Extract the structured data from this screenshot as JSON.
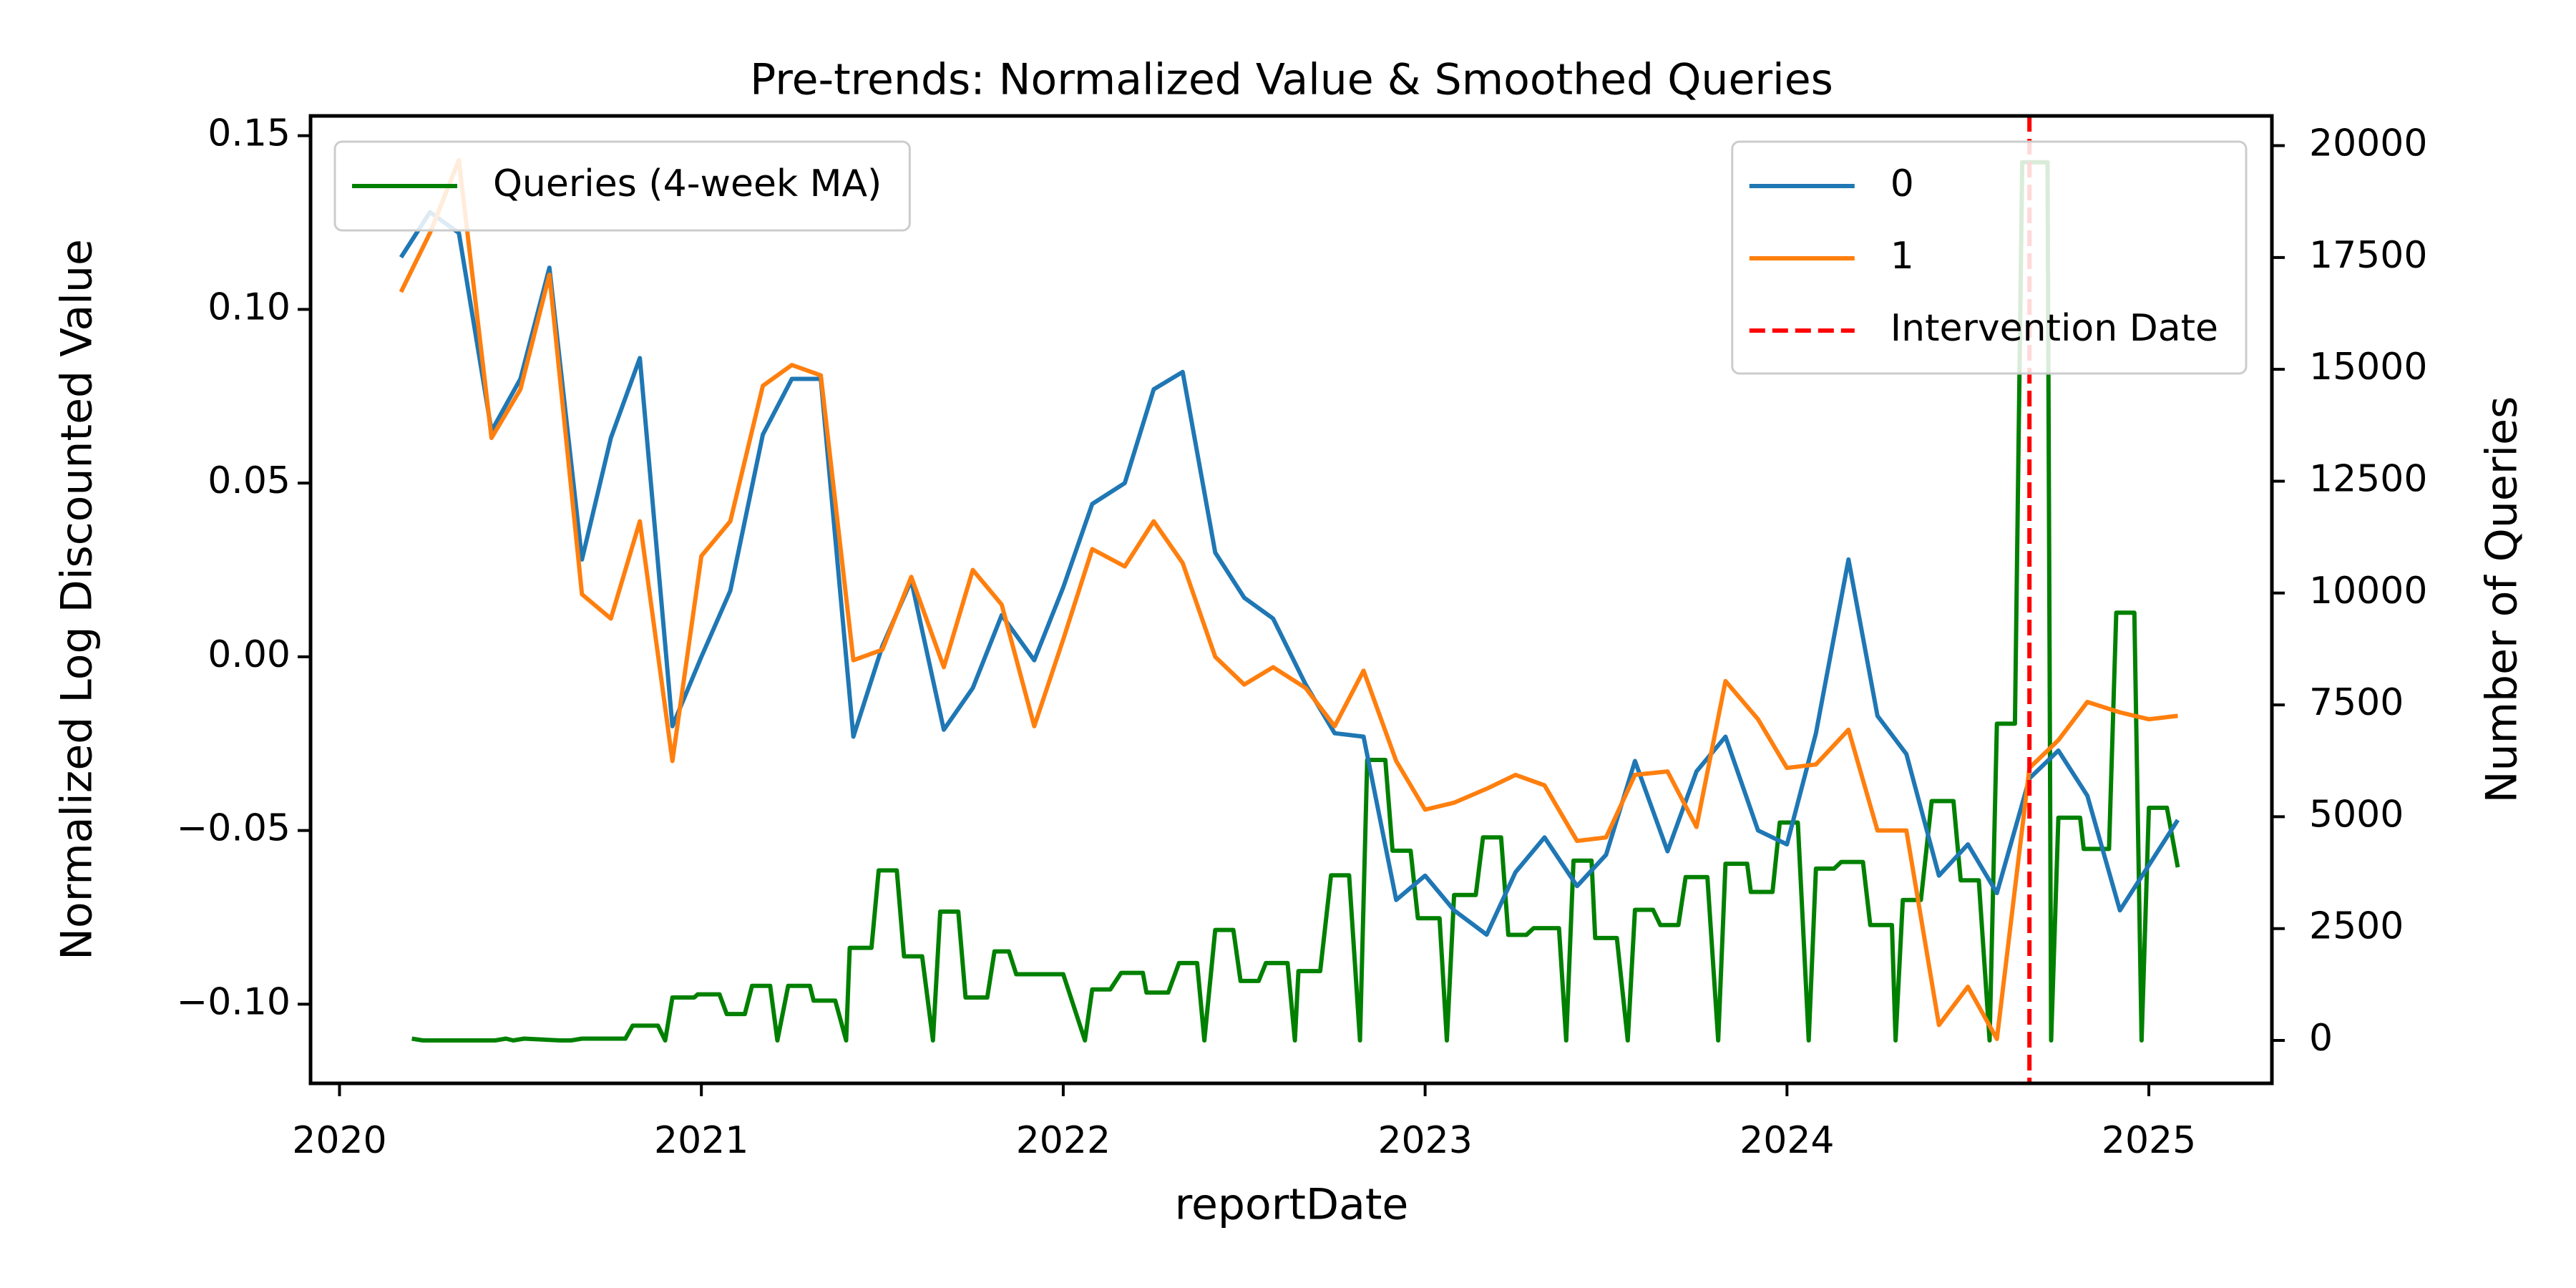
{
  "chart_data": {
    "type": "line",
    "title": "Pre-trends: Normalized Value & Smoothed Queries",
    "xlabel": "reportDate",
    "ylabel": "Normalized Log Discounted Value",
    "y2label": "Number of Queries",
    "ylabel_color": "#0000ff",
    "y2label_color": "#008000",
    "xlim": [
      2019.92,
      2025.34
    ],
    "xticks": [
      2020,
      2021,
      2022,
      2023,
      2024,
      2025
    ],
    "ylim": [
      -0.1228,
      0.1557
    ],
    "yticks": [
      {
        "value": -0.1,
        "label": "−0.10"
      },
      {
        "value": -0.05,
        "label": "−0.05"
      },
      {
        "value": 0,
        "label": "0.00"
      },
      {
        "value": 0.05,
        "label": "0.05"
      },
      {
        "value": 0.1,
        "label": "0.10"
      },
      {
        "value": 0.15,
        "label": "0.15"
      }
    ],
    "y2lim": [
      -959,
      20664
    ],
    "y2ticks": [
      0,
      2500,
      5000,
      7500,
      10000,
      12500,
      15000,
      17500,
      20000
    ],
    "legend": "upper right",
    "legend2": "upper left",
    "series": [
      {
        "name": "0",
        "color": "#1f77b4",
        "x": [
          2020.17,
          2020.25,
          2020.33,
          2020.42,
          2020.5,
          2020.58,
          2020.67,
          2020.75,
          2020.83,
          2020.92,
          2021.0,
          2021.08,
          2021.17,
          2021.25,
          2021.33,
          2021.42,
          2021.5,
          2021.58,
          2021.67,
          2021.75,
          2021.83,
          2021.92,
          2022.0,
          2022.08,
          2022.17,
          2022.25,
          2022.33,
          2022.42,
          2022.5,
          2022.58,
          2022.67,
          2022.75,
          2022.83,
          2022.92,
          2023.0,
          2023.08,
          2023.17,
          2023.25,
          2023.33,
          2023.42,
          2023.5,
          2023.58,
          2023.67,
          2023.75,
          2023.83,
          2023.92,
          2024.0,
          2024.08,
          2024.17,
          2024.25,
          2024.33,
          2024.42,
          2024.5,
          2024.58,
          2024.67,
          2024.75,
          2024.83,
          2024.92,
          2025.0,
          2025.08
        ],
        "values": [
          0.115,
          0.128,
          0.122,
          0.065,
          0.08,
          0.112,
          0.028,
          0.063,
          0.086,
          -0.02,
          0.0,
          0.019,
          0.064,
          0.08,
          0.08,
          -0.023,
          0.003,
          0.022,
          -0.021,
          -0.009,
          0.012,
          -0.001,
          0.02,
          0.044,
          0.05,
          0.077,
          0.082,
          0.03,
          0.017,
          0.011,
          -0.008,
          -0.022,
          -0.023,
          -0.07,
          -0.063,
          -0.073,
          -0.08,
          -0.062,
          -0.052,
          -0.066,
          -0.057,
          -0.03,
          -0.056,
          -0.033,
          -0.023,
          -0.05,
          -0.054,
          -0.022,
          0.028,
          -0.017,
          -0.028,
          -0.063,
          -0.054,
          -0.068,
          -0.035,
          -0.027,
          -0.04,
          -0.073,
          -0.06,
          -0.047
        ]
      },
      {
        "name": "1",
        "color": "#ff7f0e",
        "x": [
          2020.17,
          2020.25,
          2020.33,
          2020.42,
          2020.5,
          2020.58,
          2020.67,
          2020.75,
          2020.83,
          2020.92,
          2021.0,
          2021.08,
          2021.17,
          2021.25,
          2021.33,
          2021.42,
          2021.5,
          2021.58,
          2021.67,
          2021.75,
          2021.83,
          2021.92,
          2022.0,
          2022.08,
          2022.17,
          2022.25,
          2022.33,
          2022.42,
          2022.5,
          2022.58,
          2022.67,
          2022.75,
          2022.83,
          2022.92,
          2023.0,
          2023.08,
          2023.17,
          2023.25,
          2023.33,
          2023.42,
          2023.5,
          2023.58,
          2023.67,
          2023.75,
          2023.83,
          2023.92,
          2024.0,
          2024.08,
          2024.17,
          2024.25,
          2024.33,
          2024.42,
          2024.5,
          2024.58,
          2024.67,
          2024.75,
          2024.83,
          2024.92,
          2025.0,
          2025.08
        ],
        "values": [
          0.105,
          0.122,
          0.143,
          0.063,
          0.077,
          0.11,
          0.018,
          0.011,
          0.039,
          -0.03,
          0.029,
          0.039,
          0.078,
          0.084,
          0.081,
          -0.001,
          0.002,
          0.023,
          -0.003,
          0.025,
          0.015,
          -0.02,
          0.005,
          0.031,
          0.026,
          0.039,
          0.027,
          0.0,
          -0.008,
          -0.003,
          -0.009,
          -0.02,
          -0.004,
          -0.03,
          -0.044,
          -0.042,
          -0.038,
          -0.034,
          -0.037,
          -0.053,
          -0.052,
          -0.034,
          -0.033,
          -0.049,
          -0.007,
          -0.018,
          -0.032,
          -0.031,
          -0.021,
          -0.05,
          -0.05,
          -0.106,
          -0.095,
          -0.11,
          -0.032,
          -0.024,
          -0.013,
          -0.016,
          -0.018,
          -0.017
        ]
      },
      {
        "name": "Queries (4-week MA)",
        "color": "#008000",
        "axis": "y2",
        "x": [
          2020.2,
          2020.23,
          2020.26,
          2020.43,
          2020.46,
          2020.48,
          2020.51,
          2020.61,
          2020.64,
          2020.67,
          2020.79,
          2020.81,
          2020.88,
          2020.9,
          2020.92,
          2020.98,
          2020.99,
          2021.05,
          2021.07,
          2021.12,
          2021.14,
          2021.19,
          2021.21,
          2021.24,
          2021.3,
          2021.31,
          2021.37,
          2021.4,
          2021.41,
          2021.47,
          2021.49,
          2021.54,
          2021.56,
          2021.61,
          2021.64,
          2021.66,
          2021.71,
          2021.73,
          2021.79,
          2021.81,
          2021.85,
          2021.87,
          2021.92,
          2022.0,
          2022.06,
          2022.08,
          2022.13,
          2022.16,
          2022.22,
          2022.23,
          2022.29,
          2022.32,
          2022.37,
          2022.39,
          2022.42,
          2022.47,
          2022.49,
          2022.54,
          2022.56,
          2022.62,
          2022.64,
          2022.65,
          2022.71,
          2022.74,
          2022.79,
          2022.82,
          2022.84,
          2022.89,
          2022.91,
          2022.96,
          2022.98,
          2023.04,
          2023.06,
          2023.08,
          2023.14,
          2023.16,
          2023.21,
          2023.23,
          2023.28,
          2023.3,
          2023.37,
          2023.39,
          2023.41,
          2023.46,
          2023.47,
          2023.53,
          2023.56,
          2023.58,
          2023.63,
          2023.65,
          2023.7,
          2023.72,
          2023.78,
          2023.81,
          2023.83,
          2023.89,
          2023.9,
          2023.96,
          2023.98,
          2024.03,
          2024.06,
          2024.08,
          2024.13,
          2024.15,
          2024.21,
          2024.23,
          2024.29,
          2024.3,
          2024.32,
          2024.37,
          2024.4,
          2024.46,
          2024.48,
          2024.53,
          2024.56,
          2024.58,
          2024.63,
          2024.65,
          2024.72,
          2024.73,
          2024.75,
          2024.81,
          2024.82,
          2024.89,
          2024.91,
          2024.96,
          2024.98,
          2025.0,
          2025.05,
          2025.08
        ],
        "values": [
          40,
          0,
          0,
          0,
          40,
          0,
          40,
          0,
          0,
          40,
          40,
          330,
          330,
          0,
          960,
          960,
          1030,
          1030,
          590,
          590,
          1220,
          1220,
          0,
          1220,
          1220,
          890,
          890,
          0,
          2070,
          2070,
          3800,
          3800,
          1880,
          1880,
          0,
          2880,
          2880,
          960,
          960,
          1990,
          1990,
          1480,
          1480,
          1480,
          0,
          1140,
          1140,
          1510,
          1510,
          1070,
          1070,
          1730,
          1730,
          0,
          2470,
          2470,
          1330,
          1330,
          1730,
          1730,
          0,
          1550,
          1550,
          3690,
          3690,
          0,
          6270,
          6270,
          4240,
          4240,
          2730,
          2730,
          0,
          3250,
          3250,
          4540,
          4540,
          2360,
          2360,
          2510,
          2510,
          0,
          4020,
          4020,
          2290,
          2290,
          0,
          2920,
          2920,
          2580,
          2580,
          3650,
          3650,
          0,
          3950,
          3950,
          3320,
          3320,
          4870,
          4870,
          0,
          3840,
          3840,
          3990,
          3990,
          2580,
          2580,
          0,
          3140,
          3140,
          5350,
          5350,
          3580,
          3580,
          0,
          7080,
          7080,
          19630,
          19630,
          0,
          4980,
          4980,
          4280,
          4280,
          9560,
          9560,
          0,
          5200,
          5200,
          3870
        ]
      }
    ],
    "vlines": [
      {
        "name": "Intervention Date",
        "x": 2024.67,
        "color": "#ff0000",
        "style": "dashed"
      }
    ]
  }
}
